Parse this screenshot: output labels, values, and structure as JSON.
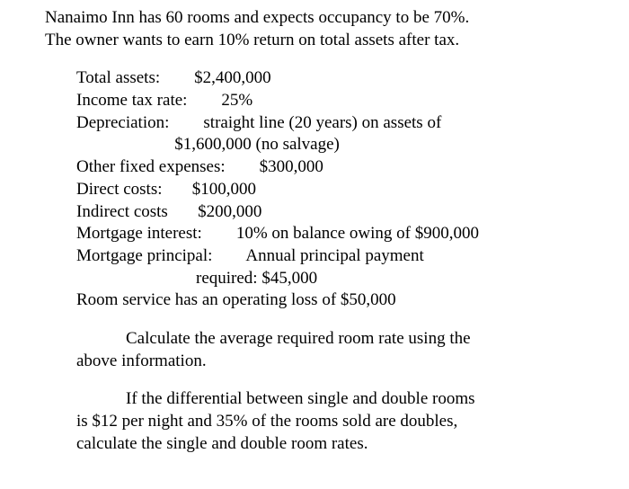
{
  "intro": {
    "line1": "Nanaimo Inn has 60 rooms and expects occupancy to be 70%.",
    "line2": "The owner wants to earn 10% return on total assets after tax."
  },
  "data": {
    "total_assets": "Total assets:        $2,400,000",
    "income_tax": "Income tax rate:        25%",
    "depreciation1": "Depreciation:        straight line (20 years) on assets of",
    "depreciation2": "                       $1,600,000 (no salvage)",
    "other_fixed": "Other fixed expenses:        $300,000",
    "direct_costs": "Direct costs:       $100,000",
    "indirect_costs": "Indirect costs       $200,000",
    "mortgage_interest": "Mortgage interest:        10% on balance owing of $900,000",
    "mortgage_principal1": "Mortgage principal:        Annual principal payment",
    "mortgage_principal2": "                            required: $45,000",
    "room_service": "Room service has an operating loss of $50,000"
  },
  "question1": {
    "line1": "Calculate the average required room rate using the",
    "line2": "above information."
  },
  "question2": {
    "line1": "If the differential between single and double rooms",
    "line2": "is $12 per night and 35% of the rooms sold are doubles,",
    "line3": "calculate the single and double room rates."
  }
}
